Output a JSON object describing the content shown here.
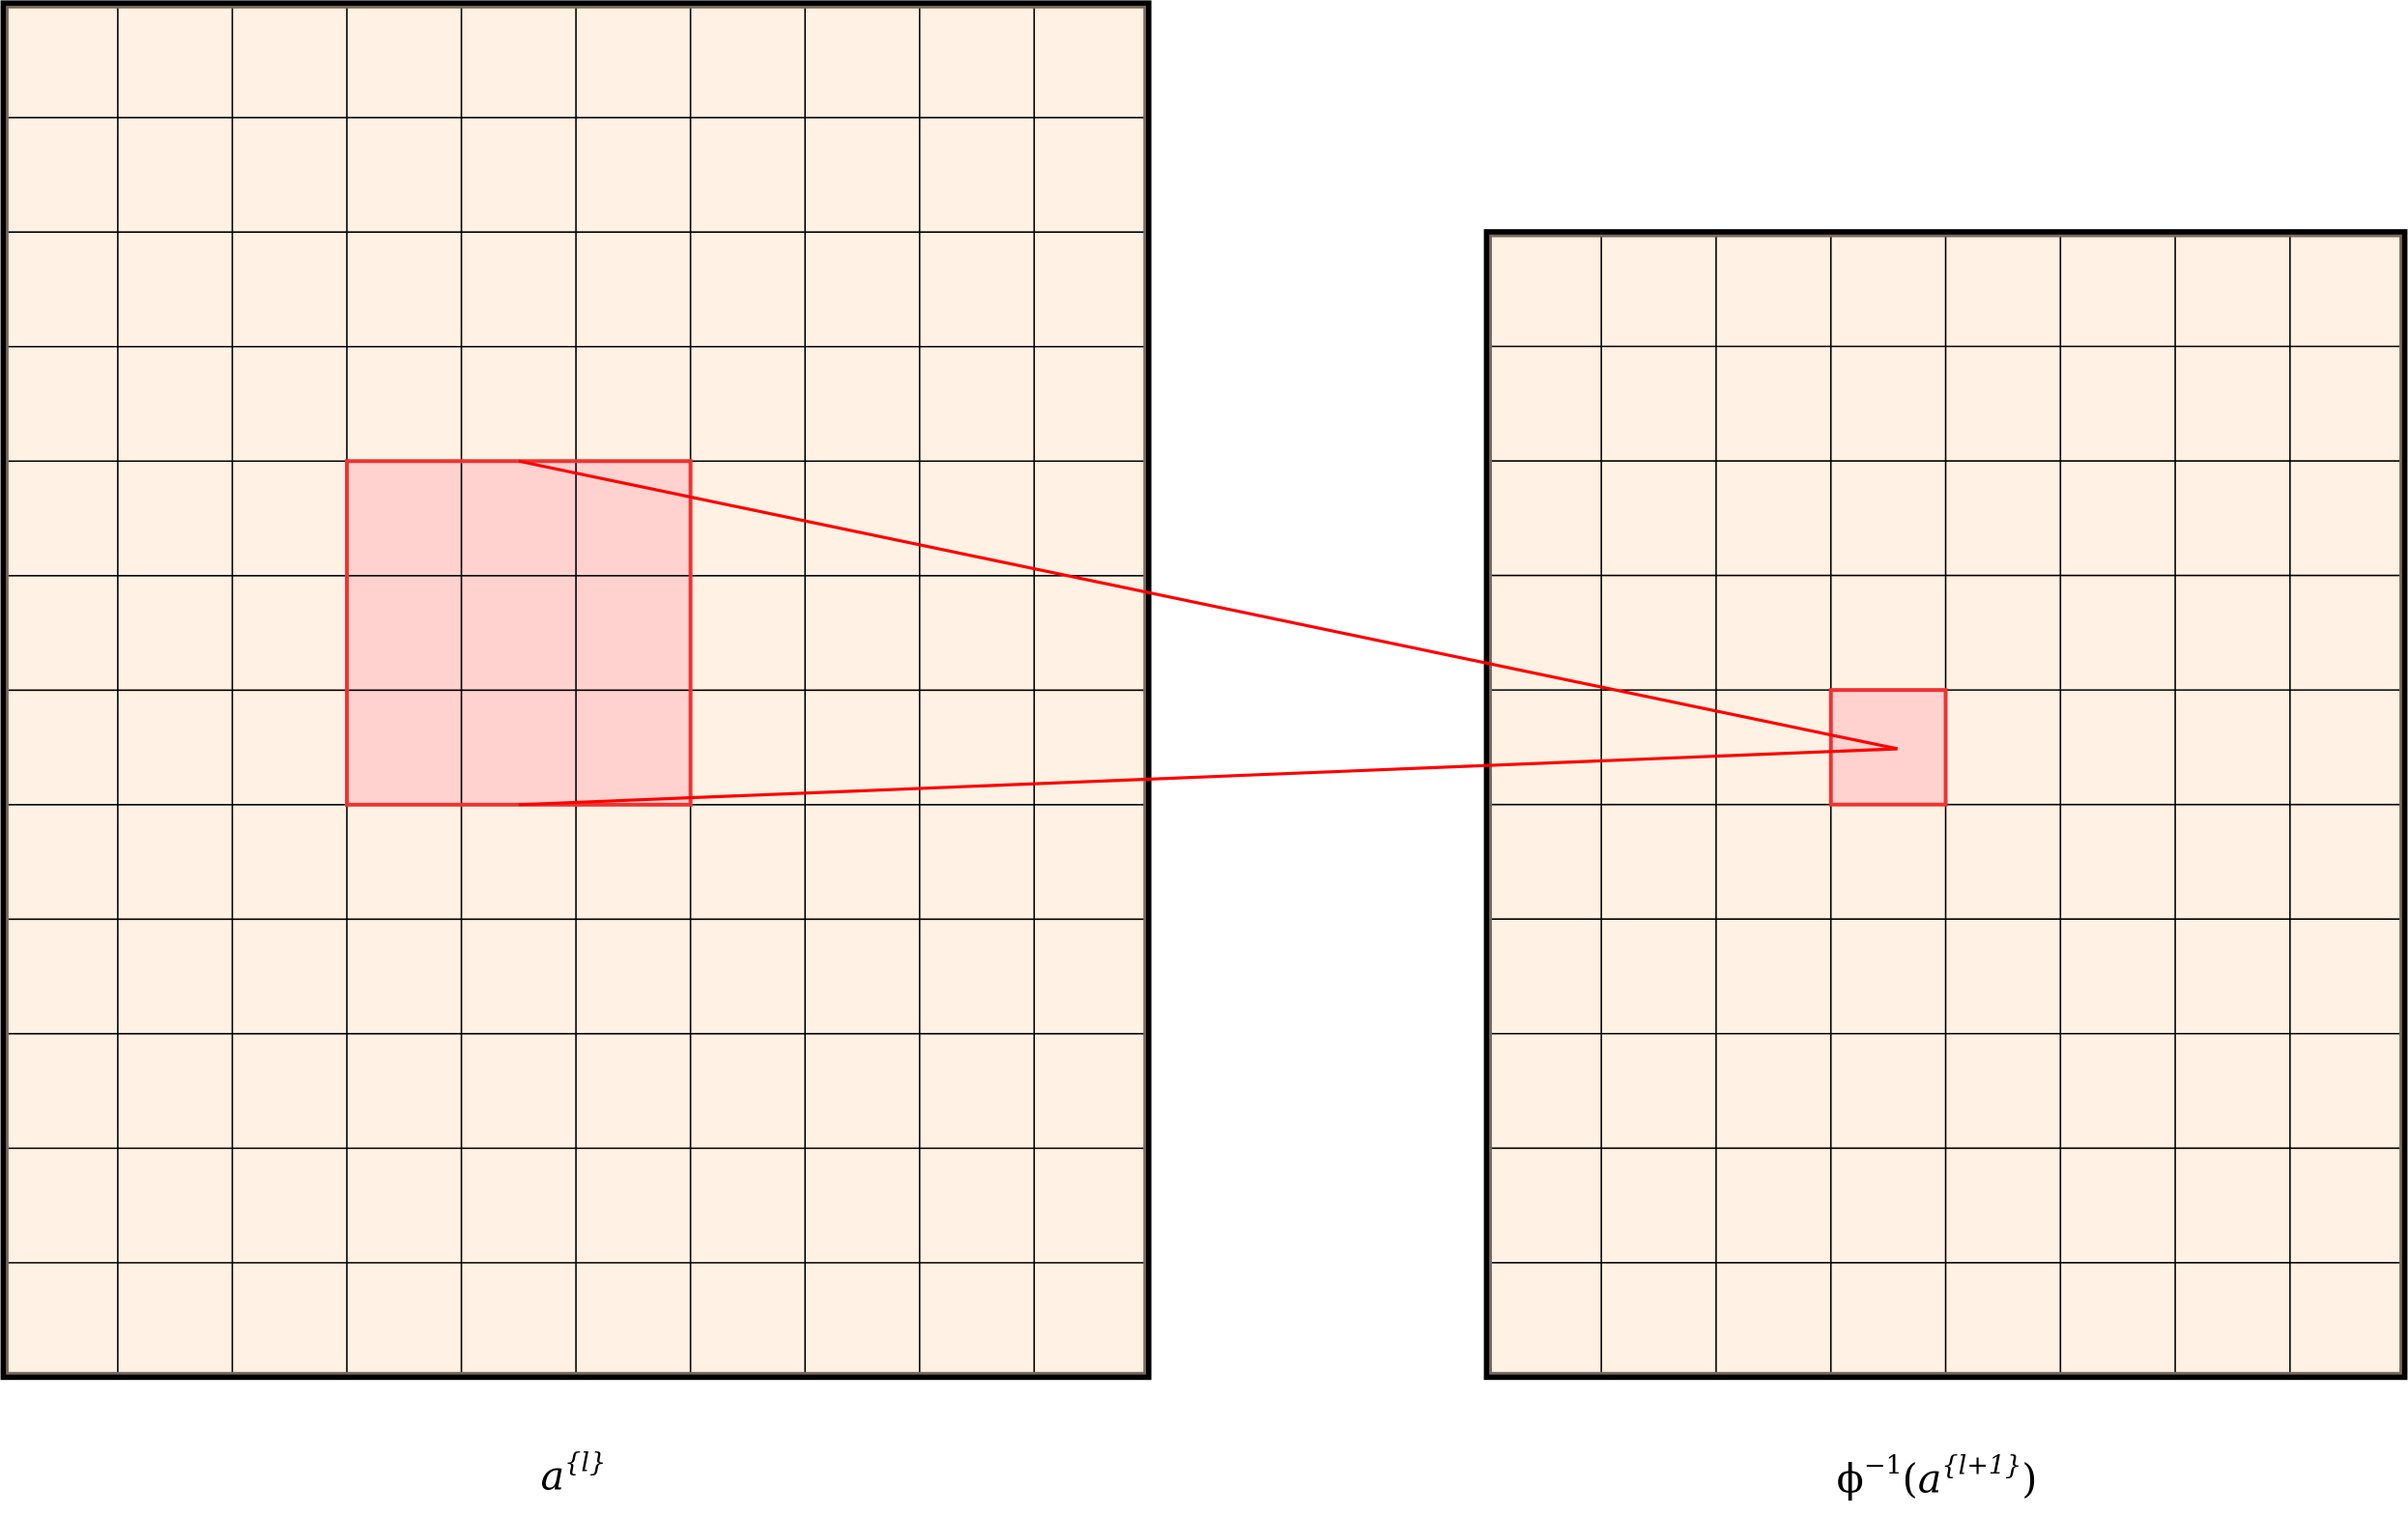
{
  "left_grid": {
    "label_base": "a",
    "label_sup": "{l}",
    "cols": 10,
    "rows": 12,
    "highlight": {
      "col_start": 3,
      "col_end": 6,
      "row_start": 4,
      "row_end": 7
    }
  },
  "right_grid": {
    "label_prefix": "ϕ",
    "label_prefix_sup": "−1",
    "label_open": "(",
    "label_base": "a",
    "label_sup": "{l+1}",
    "label_close": ")",
    "cols": 8,
    "rows": 10,
    "highlight": {
      "col_start": 3,
      "col_end": 4,
      "row_start": 4,
      "row_end": 5
    }
  },
  "colors": {
    "cell_fill": "#fff1e3",
    "grid_line": "#000000",
    "highlight_fill": "#ffd2cf",
    "highlight_stroke": "#ee3333",
    "connector": "#ff0000"
  }
}
